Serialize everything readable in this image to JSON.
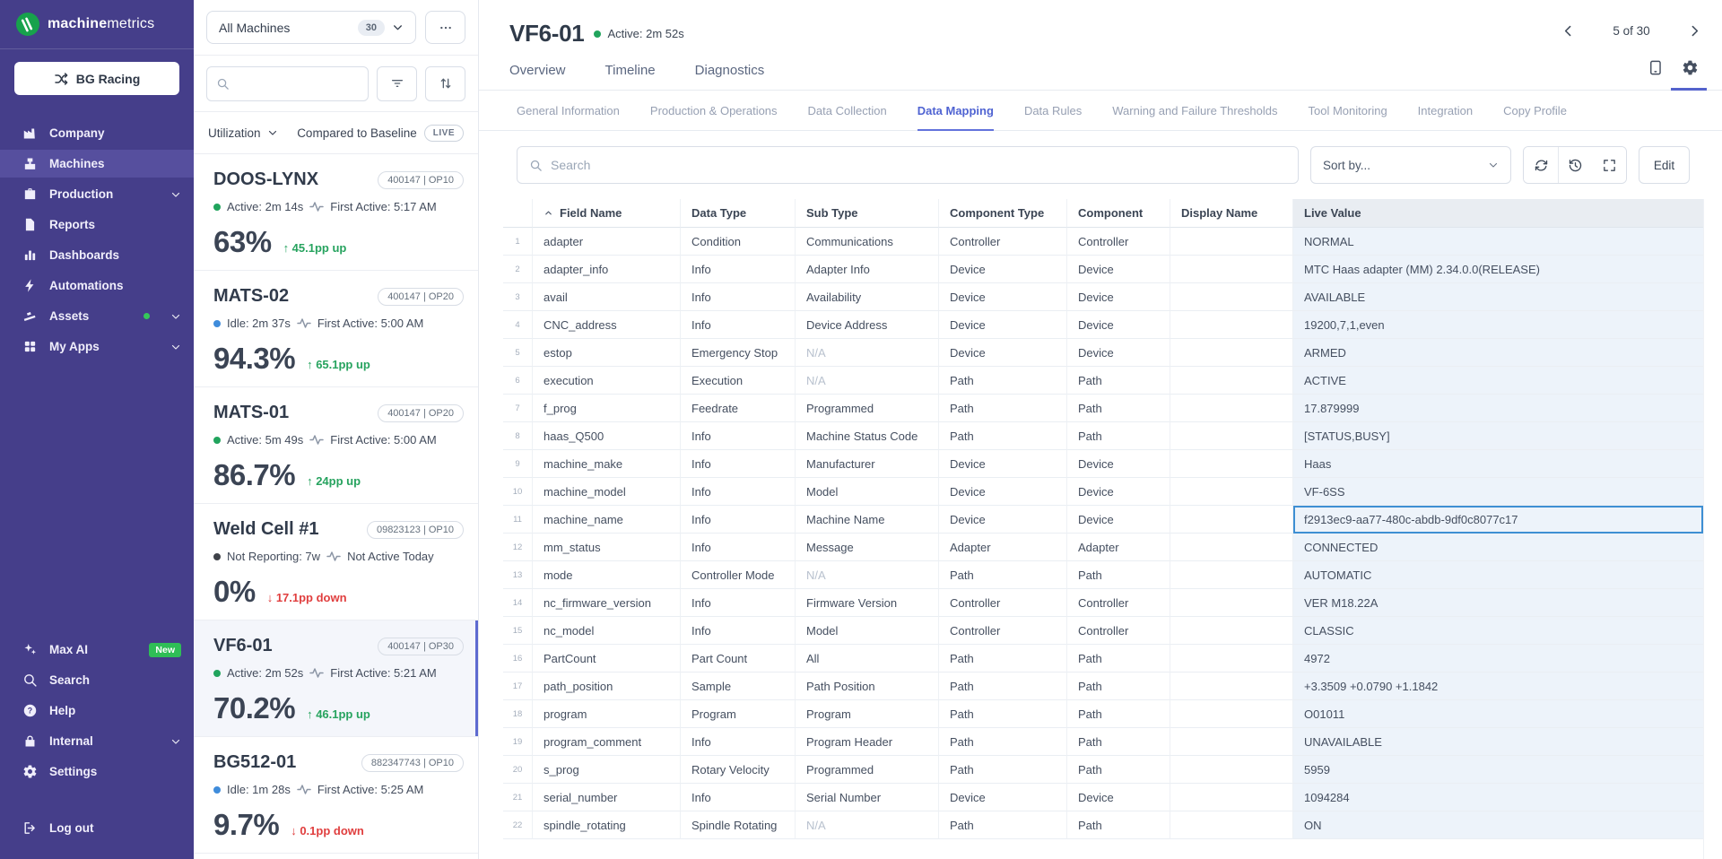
{
  "brand": {
    "logo_bold": "machine",
    "logo_light": "metrics",
    "org_button": "BG Racing"
  },
  "sidebar": {
    "items": [
      {
        "label": "Company",
        "icon": "factory-icon"
      },
      {
        "label": "Machines",
        "icon": "machine-icon",
        "selected": true
      },
      {
        "label": "Production",
        "icon": "briefcase-icon",
        "chevron": true
      },
      {
        "label": "Reports",
        "icon": "report-icon"
      },
      {
        "label": "Dashboards",
        "icon": "bar-chart-icon"
      },
      {
        "label": "Automations",
        "icon": "lightning-icon"
      },
      {
        "label": "Assets",
        "icon": "conveyor-icon",
        "dot": "#35c75a",
        "chevron": true
      },
      {
        "label": "My Apps",
        "icon": "grid-icon",
        "chevron": true
      }
    ],
    "footer_items": [
      {
        "label": "Max AI",
        "icon": "sparkles-icon",
        "badge": "New"
      },
      {
        "label": "Search",
        "icon": "search-icon"
      },
      {
        "label": "Help",
        "icon": "help-icon"
      },
      {
        "label": "Internal",
        "icon": "lock-icon",
        "chevron": true
      },
      {
        "label": "Settings",
        "icon": "gear-icon"
      }
    ],
    "logout_label": "Log out"
  },
  "machine_panel": {
    "filter_label": "All Machines",
    "filter_count": "30",
    "search_placeholder": "",
    "metric_label": "Utilization",
    "compare_label": "Compared to Baseline",
    "live_label": "LIVE",
    "machines": [
      {
        "name": "DOOS-LYNX",
        "badge": "400147 | OP10",
        "status": "Active: 2m 14s",
        "status_color": "green",
        "first_active": "First Active: 5:17 AM",
        "value": "63%",
        "change": "45.1pp up",
        "direction": "up",
        "selected": false
      },
      {
        "name": "MATS-02",
        "badge": "400147 | OP20",
        "status": "Idle: 2m 37s",
        "status_color": "blue",
        "first_active": "First Active: 5:00 AM",
        "value": "94.3%",
        "change": "65.1pp up",
        "direction": "up",
        "selected": false
      },
      {
        "name": "MATS-01",
        "badge": "400147 | OP20",
        "status": "Active: 5m 49s",
        "status_color": "green",
        "first_active": "First Active: 5:00 AM",
        "value": "86.7%",
        "change": "24pp up",
        "direction": "up",
        "selected": false
      },
      {
        "name": "Weld Cell #1",
        "badge": "09823123 | OP10",
        "status": "Not Reporting: 7w",
        "status_color": "dark",
        "first_active": "Not Active Today",
        "value": "0%",
        "change": "17.1pp down",
        "direction": "down",
        "selected": false
      },
      {
        "name": "VF6-01",
        "badge": "400147 | OP30",
        "status": "Active: 2m 52s",
        "status_color": "green",
        "first_active": "First Active: 5:21 AM",
        "value": "70.2%",
        "change": "46.1pp up",
        "direction": "up",
        "selected": true
      },
      {
        "name": "BG512-01",
        "badge": "882347743 | OP10",
        "status": "Idle: 1m 28s",
        "status_color": "blue",
        "first_active": "First Active: 5:25 AM",
        "value": "9.7%",
        "change": "0.1pp down",
        "direction": "down",
        "selected": false
      }
    ]
  },
  "main": {
    "title": "VF6-01",
    "status": "Active: 2m 52s",
    "pagination": "5 of 30",
    "tabs": [
      "Overview",
      "Timeline",
      "Diagnostics"
    ],
    "subtabs": [
      {
        "label": "General Information"
      },
      {
        "label": "Production & Operations"
      },
      {
        "label": "Data Collection"
      },
      {
        "label": "Data Mapping",
        "active": true
      },
      {
        "label": "Data Rules"
      },
      {
        "label": "Warning and Failure Thresholds"
      },
      {
        "label": "Tool Monitoring"
      },
      {
        "label": "Integration"
      },
      {
        "label": "Copy Profile"
      }
    ],
    "toolbar": {
      "search_placeholder": "Search",
      "sort_label": "Sort by...",
      "edit_label": "Edit"
    },
    "table": {
      "columns": [
        "Field Name",
        "Data Type",
        "Sub Type",
        "Component Type",
        "Component",
        "Display Name",
        "Live Value"
      ],
      "rows": [
        {
          "num": "1",
          "field": "adapter",
          "data_type": "Condition",
          "sub_type": "Communications",
          "na": false,
          "component_type": "Controller",
          "component": "Controller",
          "display_name": "",
          "live_value": "NORMAL"
        },
        {
          "num": "2",
          "field": "adapter_info",
          "data_type": "Info",
          "sub_type": "Adapter Info",
          "na": false,
          "component_type": "Device",
          "component": "Device",
          "display_name": "",
          "live_value": "MTC Haas adapter (MM) 2.34.0.0(RELEASE)"
        },
        {
          "num": "3",
          "field": "avail",
          "data_type": "Info",
          "sub_type": "Availability",
          "na": false,
          "component_type": "Device",
          "component": "Device",
          "display_name": "",
          "live_value": "AVAILABLE"
        },
        {
          "num": "4",
          "field": "CNC_address",
          "data_type": "Info",
          "sub_type": "Device Address",
          "na": false,
          "component_type": "Device",
          "component": "Device",
          "display_name": "",
          "live_value": "19200,7,1,even"
        },
        {
          "num": "5",
          "field": "estop",
          "data_type": "Emergency Stop",
          "sub_type": "N/A",
          "na": true,
          "component_type": "Device",
          "component": "Device",
          "display_name": "",
          "live_value": "ARMED"
        },
        {
          "num": "6",
          "field": "execution",
          "data_type": "Execution",
          "sub_type": "N/A",
          "na": true,
          "component_type": "Path",
          "component": "Path",
          "display_name": "",
          "live_value": "ACTIVE"
        },
        {
          "num": "7",
          "field": "f_prog",
          "data_type": "Feedrate",
          "sub_type": "Programmed",
          "na": false,
          "component_type": "Path",
          "component": "Path",
          "display_name": "",
          "live_value": "17.879999"
        },
        {
          "num": "8",
          "field": "haas_Q500",
          "data_type": "Info",
          "sub_type": "Machine Status Code",
          "na": false,
          "component_type": "Path",
          "component": "Path",
          "display_name": "",
          "live_value": "[STATUS,BUSY]"
        },
        {
          "num": "9",
          "field": "machine_make",
          "data_type": "Info",
          "sub_type": "Manufacturer",
          "na": false,
          "component_type": "Device",
          "component": "Device",
          "display_name": "",
          "live_value": "Haas"
        },
        {
          "num": "10",
          "field": "machine_model",
          "data_type": "Info",
          "sub_type": "Model",
          "na": false,
          "component_type": "Device",
          "component": "Device",
          "display_name": "",
          "live_value": "VF-6SS"
        },
        {
          "num": "11",
          "field": "machine_name",
          "data_type": "Info",
          "sub_type": "Machine Name",
          "na": false,
          "component_type": "Device",
          "component": "Device",
          "display_name": "",
          "live_value": "f2913ec9-aa77-480c-abdb-9df0c8077c17",
          "selected": true
        },
        {
          "num": "12",
          "field": "mm_status",
          "data_type": "Info",
          "sub_type": "Message",
          "na": false,
          "component_type": "Adapter",
          "component": "Adapter",
          "display_name": "",
          "live_value": "CONNECTED"
        },
        {
          "num": "13",
          "field": "mode",
          "data_type": "Controller Mode",
          "sub_type": "N/A",
          "na": true,
          "component_type": "Path",
          "component": "Path",
          "display_name": "",
          "live_value": "AUTOMATIC"
        },
        {
          "num": "14",
          "field": "nc_firmware_version",
          "data_type": "Info",
          "sub_type": "Firmware Version",
          "na": false,
          "component_type": "Controller",
          "component": "Controller",
          "display_name": "",
          "live_value": "VER M18.22A"
        },
        {
          "num": "15",
          "field": "nc_model",
          "data_type": "Info",
          "sub_type": "Model",
          "na": false,
          "component_type": "Controller",
          "component": "Controller",
          "display_name": "",
          "live_value": "CLASSIC"
        },
        {
          "num": "16",
          "field": "PartCount",
          "data_type": "Part Count",
          "sub_type": "All",
          "na": false,
          "component_type": "Path",
          "component": "Path",
          "display_name": "",
          "live_value": "4972"
        },
        {
          "num": "17",
          "field": "path_position",
          "data_type": "Sample",
          "sub_type": "Path Position",
          "na": false,
          "component_type": "Path",
          "component": "Path",
          "display_name": "",
          "live_value": "+3.3509 +0.0790 +1.1842"
        },
        {
          "num": "18",
          "field": "program",
          "data_type": "Program",
          "sub_type": "Program",
          "na": false,
          "component_type": "Path",
          "component": "Path",
          "display_name": "",
          "live_value": "O01011"
        },
        {
          "num": "19",
          "field": "program_comment",
          "data_type": "Info",
          "sub_type": "Program Header",
          "na": false,
          "component_type": "Path",
          "component": "Path",
          "display_name": "",
          "live_value": "UNAVAILABLE"
        },
        {
          "num": "20",
          "field": "s_prog",
          "data_type": "Rotary Velocity",
          "sub_type": "Programmed",
          "na": false,
          "component_type": "Path",
          "component": "Path",
          "display_name": "",
          "live_value": "5959"
        },
        {
          "num": "21",
          "field": "serial_number",
          "data_type": "Info",
          "sub_type": "Serial Number",
          "na": false,
          "component_type": "Device",
          "component": "Device",
          "display_name": "",
          "live_value": "1094284"
        },
        {
          "num": "22",
          "field": "spindle_rotating",
          "data_type": "Spindle Rotating",
          "sub_type": "N/A",
          "na": true,
          "component_type": "Path",
          "component": "Path",
          "display_name": "",
          "live_value": "ON"
        }
      ]
    }
  }
}
